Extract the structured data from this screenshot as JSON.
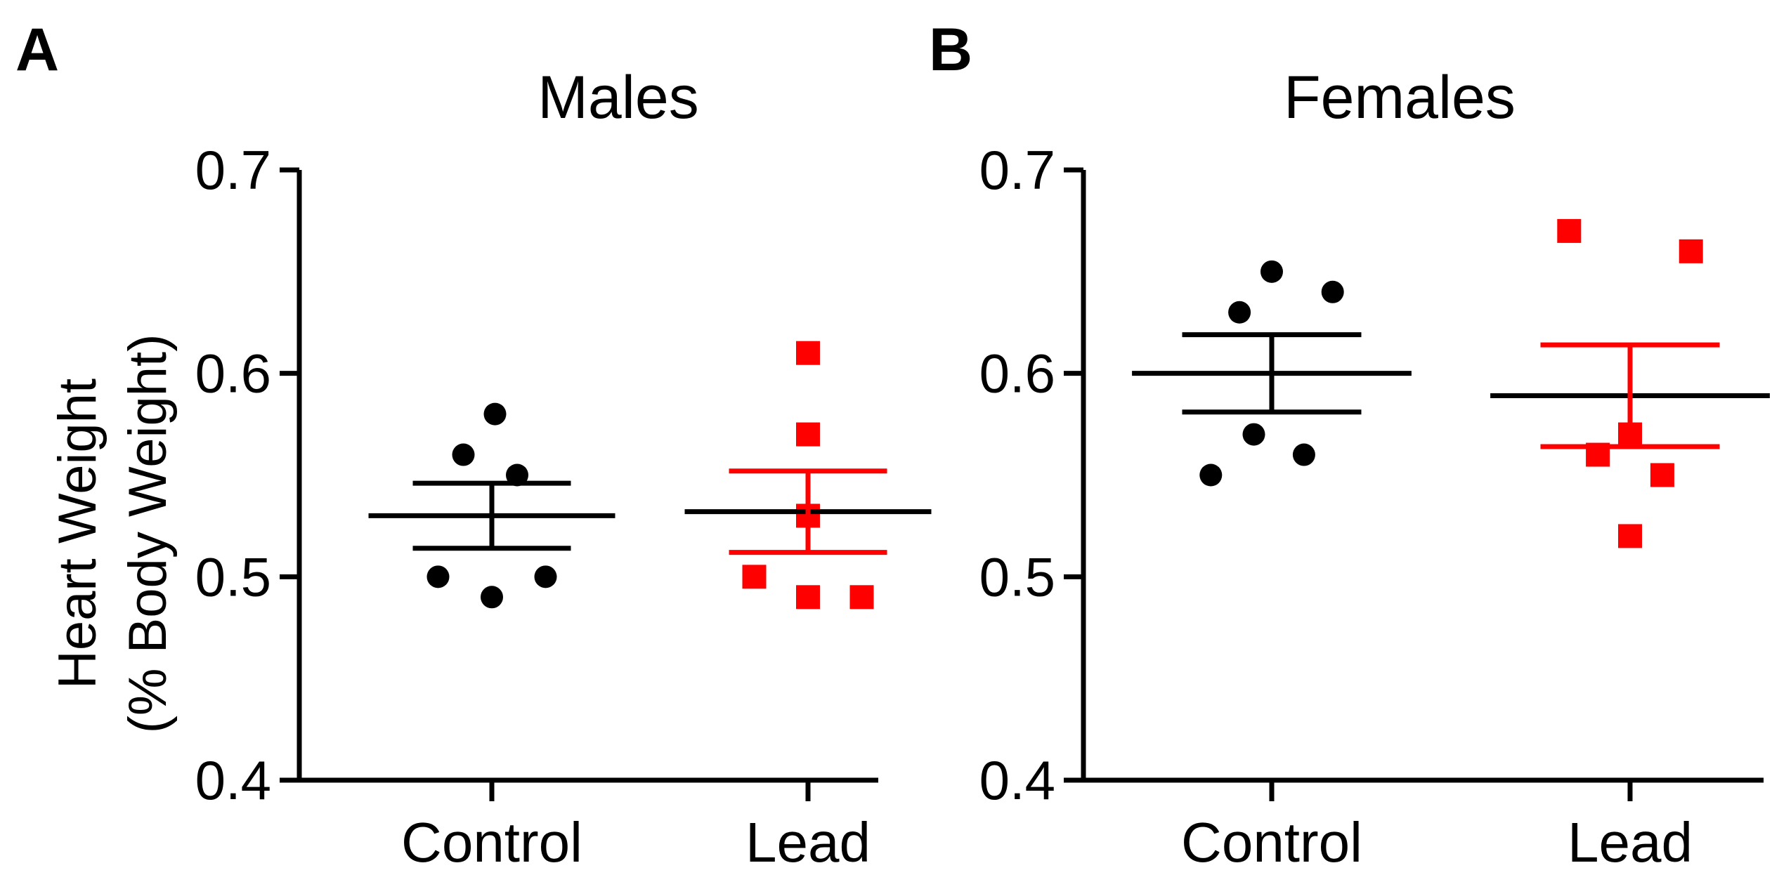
{
  "chart_data": [
    {
      "type": "scatter",
      "panel_label": "A",
      "title": "Males",
      "ylabel_line1": "Heart  Weight",
      "ylabel_line2": "(% Body Weight)",
      "xlabel": "",
      "ylim": [
        0.4,
        0.7
      ],
      "yticks": [
        "0.4",
        "0.5",
        "0.6",
        "0.7"
      ],
      "categories": [
        "Control",
        "Lead"
      ],
      "series": [
        {
          "name": "Control",
          "color": "#000000",
          "marker": "circle",
          "points": [
            {
              "dx": 0.02,
              "y": 0.58
            },
            {
              "dx": -0.18,
              "y": 0.56
            },
            {
              "dx": 0.16,
              "y": 0.55
            },
            {
              "dx": -0.34,
              "y": 0.5
            },
            {
              "dx": 0.34,
              "y": 0.5
            },
            {
              "dx": 0.0,
              "y": 0.49
            }
          ],
          "mean": 0.53,
          "sem": 0.016
        },
        {
          "name": "Lead",
          "color": "#ff0000",
          "marker": "square",
          "points": [
            {
              "dx": 0.0,
              "y": 0.61
            },
            {
              "dx": 0.0,
              "y": 0.57
            },
            {
              "dx": 0.0,
              "y": 0.53
            },
            {
              "dx": -0.34,
              "y": 0.5
            },
            {
              "dx": 0.0,
              "y": 0.49
            },
            {
              "dx": 0.34,
              "y": 0.49
            }
          ],
          "mean": 0.532,
          "sem": 0.02
        }
      ]
    },
    {
      "type": "scatter",
      "panel_label": "B",
      "title": "Females",
      "ylabel_line1": "",
      "ylabel_line2": "",
      "xlabel": "",
      "ylim": [
        0.4,
        0.7
      ],
      "yticks": [
        "0.4",
        "0.5",
        "0.6",
        "0.7"
      ],
      "categories": [
        "Control",
        "Lead"
      ],
      "series": [
        {
          "name": "Control",
          "color": "#000000",
          "marker": "circle",
          "points": [
            {
              "dx": 0.0,
              "y": 0.65
            },
            {
              "dx": 0.34,
              "y": 0.64
            },
            {
              "dx": -0.18,
              "y": 0.63
            },
            {
              "dx": -0.1,
              "y": 0.57
            },
            {
              "dx": 0.18,
              "y": 0.56
            },
            {
              "dx": -0.34,
              "y": 0.55
            }
          ],
          "mean": 0.6,
          "sem": 0.019
        },
        {
          "name": "Lead",
          "color": "#ff0000",
          "marker": "square",
          "points": [
            {
              "dx": -0.34,
              "y": 0.67
            },
            {
              "dx": 0.34,
              "y": 0.66
            },
            {
              "dx": 0.0,
              "y": 0.57
            },
            {
              "dx": -0.18,
              "y": 0.56
            },
            {
              "dx": 0.18,
              "y": 0.55
            },
            {
              "dx": 0.0,
              "y": 0.52
            }
          ],
          "mean": 0.589,
          "sem": 0.025
        }
      ]
    }
  ]
}
